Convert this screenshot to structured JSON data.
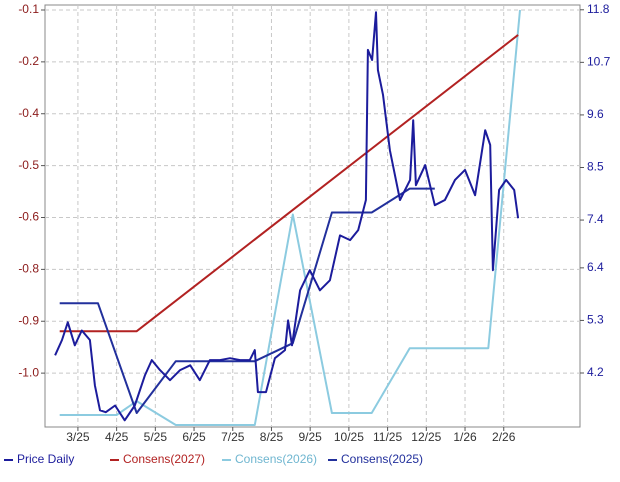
{
  "chart_data": {
    "type": "line",
    "x_ticks_unit": null,
    "xlim": [
      -0.85,
      12.97
    ],
    "xticks": [
      {
        "value": 0,
        "label": "3/25"
      },
      {
        "value": 1,
        "label": "4/25"
      },
      {
        "value": 2,
        "label": "5/25"
      },
      {
        "value": 3,
        "label": "6/25"
      },
      {
        "value": 4,
        "label": "7/25"
      },
      {
        "value": 5,
        "label": "8/25"
      },
      {
        "value": 6,
        "label": "9/25"
      },
      {
        "value": 7,
        "label": "10/25"
      },
      {
        "value": 8,
        "label": "11/25"
      },
      {
        "value": 9,
        "label": "12/25"
      },
      {
        "value": 10,
        "label": "1/26"
      },
      {
        "value": 11,
        "label": "2/26"
      }
    ],
    "ylim": [
      -1.145,
      -0.0875
    ],
    "yticks": [
      {
        "value": -0.1,
        "label": "-0.1"
      },
      {
        "value": -0.23,
        "label": "-0.2"
      },
      {
        "value": -0.36,
        "label": "-0.4"
      },
      {
        "value": -0.49,
        "label": "-0.5"
      },
      {
        "value": -0.62,
        "label": "-0.6"
      },
      {
        "value": -0.75,
        "label": "-0.8"
      },
      {
        "value": -0.88,
        "label": "-0.9"
      },
      {
        "value": -1.01,
        "label": "-1.0"
      }
    ],
    "y2lim": [
      3.07,
      11.9
    ],
    "y2ticks": [
      11.8,
      10.7,
      9.6,
      8.5,
      7.4,
      6.4,
      5.3,
      4.2
    ],
    "grid": true,
    "series": [
      {
        "name": "Price Daily",
        "color": "#1c1c9c",
        "axis": "y2",
        "x": [
          -0.59,
          -0.41,
          -0.26,
          -0.08,
          0.1,
          0.31,
          0.44,
          0.57,
          0.72,
          0.96,
          1.21,
          1.47,
          1.73,
          1.91,
          2.12,
          2.38,
          2.64,
          2.9,
          3.15,
          3.41,
          3.67,
          3.93,
          4.19,
          4.44,
          4.57,
          4.65,
          4.86,
          5.09,
          5.35,
          5.43,
          5.53,
          5.74,
          5.99,
          6.25,
          6.51,
          6.77,
          7.03,
          7.24,
          7.44,
          7.49,
          7.6,
          7.7,
          7.75,
          7.88,
          8.06,
          8.32,
          8.58,
          8.66,
          8.73,
          8.97,
          9.22,
          9.48,
          9.74,
          10.0,
          10.26,
          10.52,
          10.65,
          10.72,
          10.88,
          11.06,
          11.27,
          11.37
        ],
        "values": [
          4.57,
          4.89,
          5.26,
          4.78,
          5.09,
          4.89,
          3.94,
          3.42,
          3.38,
          3.52,
          3.21,
          3.52,
          4.15,
          4.47,
          4.26,
          4.05,
          4.26,
          4.36,
          4.05,
          4.47,
          4.47,
          4.51,
          4.47,
          4.47,
          4.68,
          3.8,
          3.8,
          4.51,
          4.68,
          5.3,
          4.78,
          5.93,
          6.35,
          5.93,
          6.14,
          7.08,
          6.98,
          7.19,
          7.82,
          10.96,
          10.75,
          11.75,
          10.54,
          10.02,
          8.86,
          7.82,
          8.24,
          9.49,
          8.13,
          8.55,
          7.71,
          7.82,
          8.24,
          8.45,
          7.92,
          9.28,
          8.97,
          6.35,
          8.03,
          8.24,
          8.03,
          7.44
        ]
      },
      {
        "name": "Consens(2027)",
        "color": "#b22222",
        "x": [
          -0.47,
          1.52,
          11.37
        ],
        "values": [
          -0.905,
          -0.905,
          -0.1625
        ]
      },
      {
        "name": "Consens(2026)",
        "color": "#8ccbe0",
        "x": [
          -0.47,
          1.0,
          1.52,
          2.53,
          4.57,
          5.55,
          6.56,
          7.59,
          8.57,
          10.6,
          11.42
        ],
        "values": [
          -1.115,
          -1.115,
          -1.08,
          -1.14,
          -1.14,
          -0.6125,
          -1.11,
          -1.11,
          -0.9475,
          -0.9475,
          -0.1
        ]
      },
      {
        "name": "Consens(2025)",
        "color": "#22309c",
        "x": [
          -0.47,
          0.52,
          1.52,
          2.53,
          4.57,
          5.55,
          6.56,
          7.59,
          8.57,
          9.22
        ],
        "values": [
          -0.835,
          -0.835,
          -1.11,
          -0.98,
          -0.98,
          -0.935,
          -0.6075,
          -0.6075,
          -0.5475,
          -0.5475
        ]
      }
    ]
  }
}
